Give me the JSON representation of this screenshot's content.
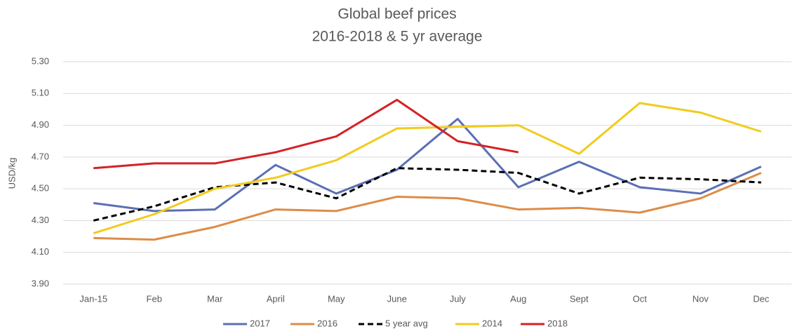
{
  "chart_data": {
    "type": "line",
    "title": "Global beef prices",
    "subtitle": "2016-2018 & 5 yr average",
    "y_label": "USD/kg",
    "categories": [
      "Jan-15",
      "Feb",
      "Mar",
      "April",
      "May",
      "June",
      "July",
      "Aug",
      "Sept",
      "Oct",
      "Nov",
      "Dec"
    ],
    "series": [
      {
        "name": "2017",
        "color": "#5b6fb4",
        "values": [
          4.41,
          4.36,
          4.37,
          4.65,
          4.47,
          4.62,
          4.94,
          4.51,
          4.67,
          4.51,
          4.47,
          4.64
        ]
      },
      {
        "name": "2016",
        "color": "#dd8c47",
        "values": [
          4.19,
          4.18,
          4.26,
          4.37,
          4.36,
          4.45,
          4.44,
          4.37,
          4.38,
          4.35,
          4.44,
          4.6
        ]
      },
      {
        "name": "5 year avg",
        "color": "#000000",
        "dashed": true,
        "values": [
          4.3,
          4.39,
          4.51,
          4.54,
          4.44,
          4.63,
          4.62,
          4.6,
          4.47,
          4.57,
          4.56,
          4.54
        ]
      },
      {
        "name": "2014",
        "color": "#f2cb1d",
        "values": [
          4.22,
          4.34,
          4.5,
          4.57,
          4.68,
          4.88,
          4.89,
          4.9,
          4.72,
          5.04,
          4.98,
          4.86
        ]
      },
      {
        "name": "2018",
        "color": "#d32227",
        "values": [
          4.63,
          4.66,
          4.66,
          4.73,
          4.83,
          5.06,
          4.8,
          4.73,
          null,
          null,
          null,
          null
        ]
      }
    ],
    "ylim": [
      3.9,
      5.3
    ],
    "yticks": [
      {
        "value": 3.9,
        "label": "3.90"
      },
      {
        "value": 4.1,
        "label": "4.10"
      },
      {
        "value": 4.3,
        "label": "4.30"
      },
      {
        "value": 4.5,
        "label": "4.50"
      },
      {
        "value": 4.7,
        "label": "4.70"
      },
      {
        "value": 4.9,
        "label": "4.90"
      },
      {
        "value": 5.1,
        "label": "5.10"
      },
      {
        "value": 5.3,
        "label": "5.30"
      }
    ],
    "grid": true,
    "legend": "bottom"
  }
}
